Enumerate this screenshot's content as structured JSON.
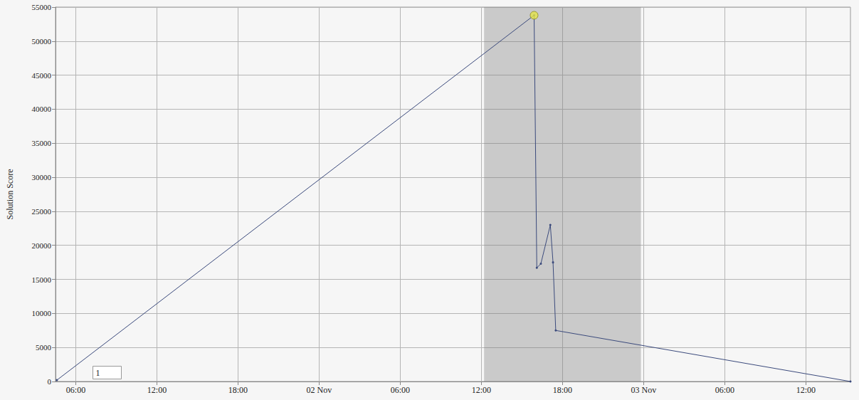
{
  "chart_data": {
    "type": "line",
    "y_label": "Solution Score",
    "x": [
      4.6,
      39.9,
      40.1,
      40.4,
      41.1,
      41.3,
      41.5,
      63.3
    ],
    "values": [
      200,
      53800,
      16700,
      17300,
      23000,
      17500,
      7500,
      0
    ],
    "color": "#3b4a7c",
    "marker": "circle",
    "line_style": "solid",
    "xlim": [
      4.5,
      63.3
    ],
    "xticks": [
      {
        "value": 6,
        "label": "06:00"
      },
      {
        "value": 12,
        "label": "12:00"
      },
      {
        "value": 18,
        "label": "18:00"
      },
      {
        "value": 24,
        "label": "02 Nov"
      },
      {
        "value": 30,
        "label": "06:00"
      },
      {
        "value": 36,
        "label": "12:00"
      },
      {
        "value": 42,
        "label": "18:00"
      },
      {
        "value": 48,
        "label": "03 Nov"
      },
      {
        "value": 54,
        "label": "06:00"
      },
      {
        "value": 60,
        "label": "12:00"
      }
    ],
    "ylim": [
      0,
      55000
    ],
    "yticks": [
      0,
      5000,
      10000,
      15000,
      20000,
      25000,
      30000,
      35000,
      40000,
      45000,
      50000,
      55000
    ],
    "grid": true,
    "shaded_x_range": [
      36.2,
      47.8
    ],
    "highlight_point": {
      "x": 39.9,
      "y": 53800,
      "color": "#e4e447"
    },
    "annotation": "1"
  }
}
